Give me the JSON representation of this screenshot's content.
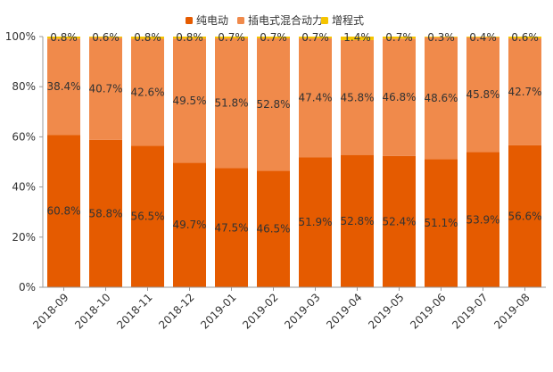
{
  "chart_data": {
    "type": "bar",
    "stacked": true,
    "normalized": true,
    "categories": [
      "2018-09",
      "2018-10",
      "2018-11",
      "2018-12",
      "2019-01",
      "2019-02",
      "2019-03",
      "2019-04",
      "2019-05",
      "2019-06",
      "2019-07",
      "2019-08"
    ],
    "series": [
      {
        "name": "纯电动",
        "color": "#e55b00",
        "values": [
          60.8,
          58.8,
          56.5,
          49.7,
          47.5,
          46.5,
          51.9,
          52.8,
          52.4,
          51.1,
          53.9,
          56.6
        ],
        "labels": [
          "60.8%",
          "58.8%",
          "56.5%",
          "49.7%",
          "47.5%",
          "46.5%",
          "51.9%",
          "52.8%",
          "52.4%",
          "51.1%",
          "53.9%",
          "56.6%"
        ]
      },
      {
        "name": "插电式混合动力",
        "color": "#f08a4b",
        "values": [
          38.4,
          40.7,
          42.6,
          49.5,
          51.8,
          52.8,
          47.4,
          45.8,
          46.8,
          48.6,
          45.8,
          42.7
        ],
        "labels": [
          "38.4%",
          "40.7%",
          "42.6%",
          "49.5%",
          "51.8%",
          "52.8%",
          "47.4%",
          "45.8%",
          "46.8%",
          "48.6%",
          "45.8%",
          "42.7%"
        ]
      },
      {
        "name": "增程式",
        "color": "#f5c400",
        "values": [
          0.8,
          0.6,
          0.8,
          0.8,
          0.7,
          0.7,
          0.7,
          1.4,
          0.7,
          0.3,
          0.4,
          0.6
        ],
        "labels": [
          "0.8%",
          "0.6%",
          "0.8%",
          "0.8%",
          "0.7%",
          "0.7%",
          "0.7%",
          "1.4%",
          "0.7%",
          "0.3%",
          "0.4%",
          "0.6%"
        ]
      }
    ],
    "ylim": [
      0,
      100
    ],
    "yticks": [
      "0%",
      "20%",
      "40%",
      "60%",
      "80%",
      "100%"
    ],
    "legend_position": "top-center",
    "grid": false
  }
}
